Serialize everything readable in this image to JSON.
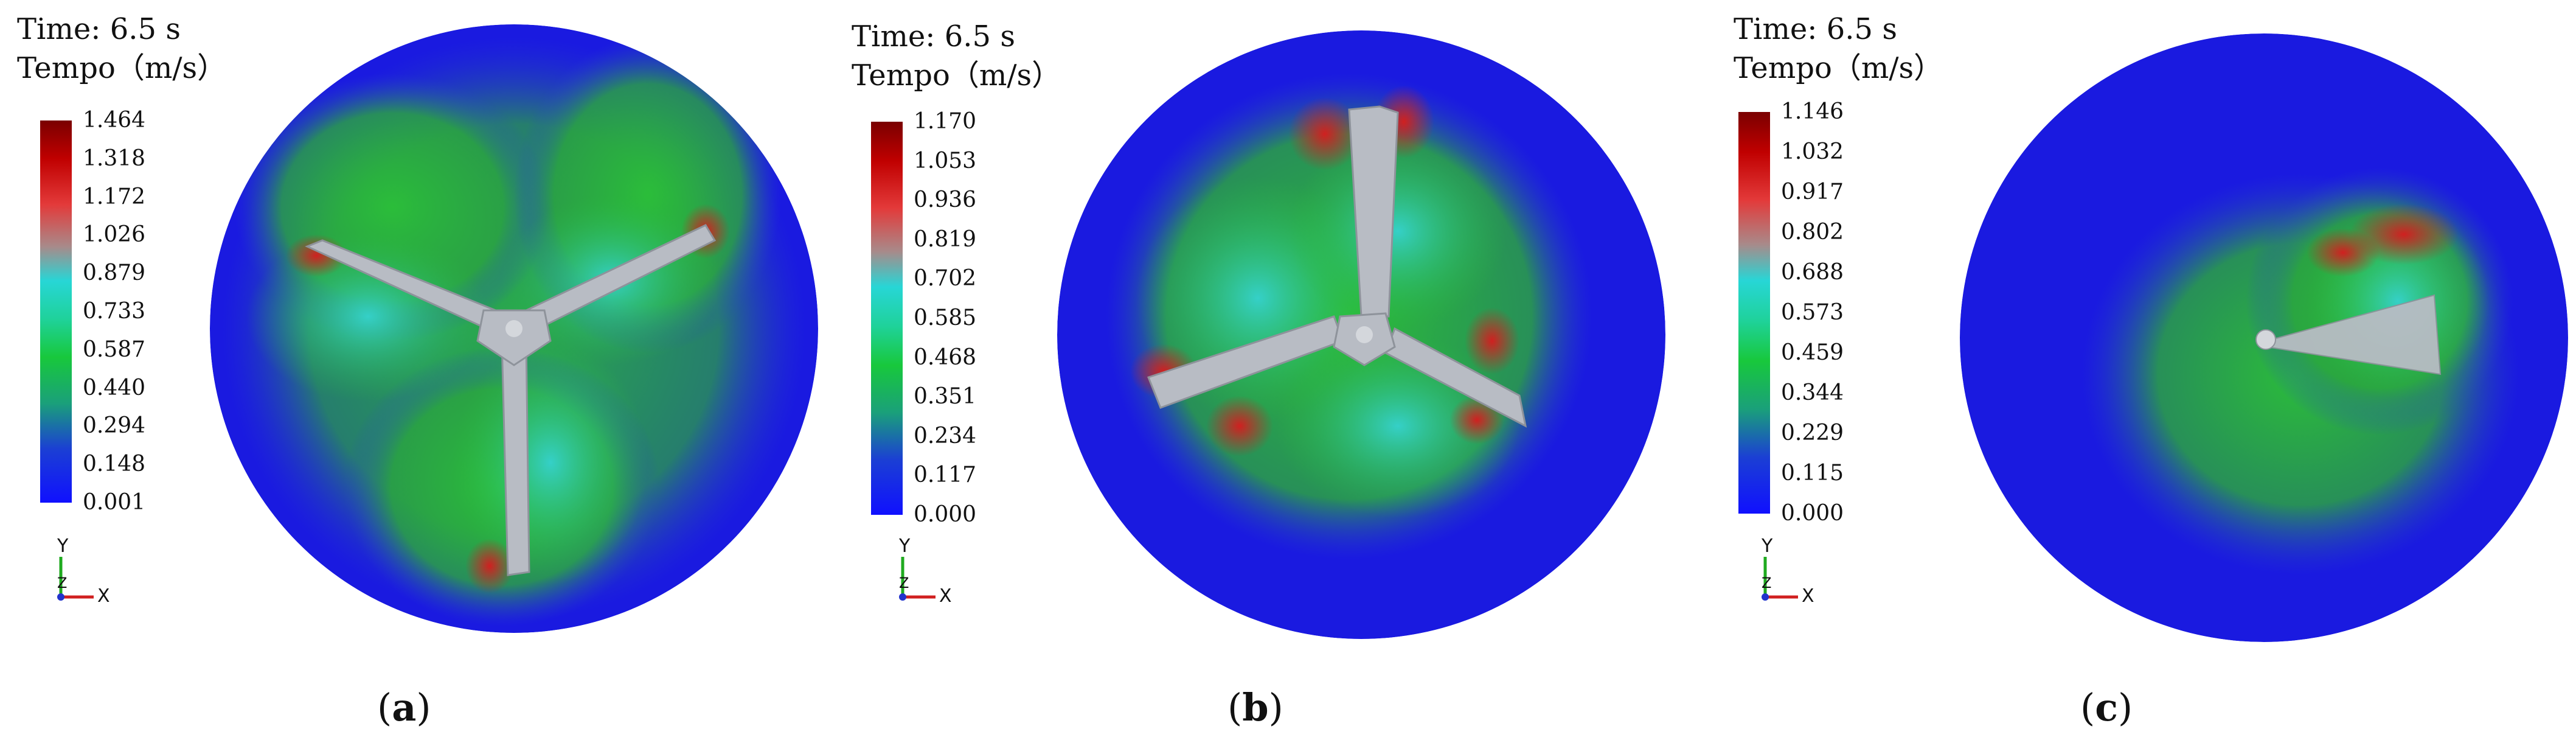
{
  "panels": [
    {
      "time_label": "Time: 6.5 s",
      "quantity_label": "Tempo（m/s）",
      "colorbar_ticks": [
        "1.464",
        "1.318",
        "1.172",
        "1.026",
        "0.879",
        "0.733",
        "0.587",
        "0.440",
        "0.294",
        "0.148",
        "0.001"
      ],
      "axis_y": "Y",
      "axis_z": "Z",
      "axis_x": "X",
      "caption_open": "(",
      "caption_letter": "a",
      "caption_close": ")"
    },
    {
      "time_label": "Time: 6.5 s",
      "quantity_label": "Tempo（m/s）",
      "colorbar_ticks": [
        "1.170",
        "1.053",
        "0.936",
        "0.819",
        "0.702",
        "0.585",
        "0.468",
        "0.351",
        "0.234",
        "0.117",
        "0.000"
      ],
      "axis_y": "Y",
      "axis_z": "Z",
      "axis_x": "X",
      "caption_open": "(",
      "caption_letter": "b",
      "caption_close": ")"
    },
    {
      "time_label": "Time: 6.5 s",
      "quantity_label": "Tempo（m/s）",
      "colorbar_ticks": [
        "1.146",
        "1.032",
        "0.917",
        "0.802",
        "0.688",
        "0.573",
        "0.459",
        "0.344",
        "0.229",
        "0.115",
        "0.000"
      ],
      "axis_y": "Y",
      "axis_z": "Z",
      "axis_x": "X",
      "caption_open": "(",
      "caption_letter": "c",
      "caption_close": ")"
    }
  ],
  "colors": {
    "background_particles": "#1a1ae0",
    "slow_particles": "#2a47c8",
    "mid_particles": "#2bbd3a",
    "fast_mid_particles": "#35d0c8",
    "fast_particles": "#d02020",
    "blade": "#b8bcc4"
  }
}
